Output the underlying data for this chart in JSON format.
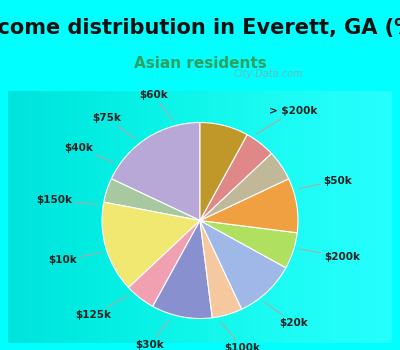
{
  "title": "Income distribution in Everett, GA (%)",
  "subtitle": "Asian residents",
  "bg_cyan": "#00FFFF",
  "chart_bg_color": "#e0f0e8",
  "labels": [
    "> $200k",
    "$50k",
    "$200k",
    "$20k",
    "$100k",
    "$30k",
    "$125k",
    "$10k",
    "$150k",
    "$40k",
    "$75k",
    "$60k"
  ],
  "values": [
    18,
    4,
    15,
    5,
    10,
    5,
    10,
    6,
    9,
    5,
    5,
    8
  ],
  "colors": [
    "#b8a8d8",
    "#a8c8a0",
    "#f0e870",
    "#f0a0b0",
    "#8890d0",
    "#f5c8a0",
    "#a0b8e8",
    "#b0e060",
    "#f0a040",
    "#c0b898",
    "#e08888",
    "#c0982a"
  ],
  "startangle": 90,
  "title_fontsize": 15,
  "subtitle_fontsize": 11,
  "subtitle_color": "#30a060",
  "label_fontsize": 7.5
}
